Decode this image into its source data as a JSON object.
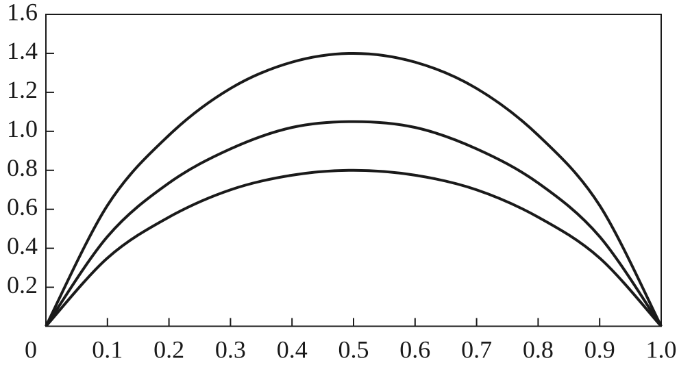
{
  "chart_data": {
    "type": "line",
    "x": [
      0,
      0.1,
      0.2,
      0.3,
      0.4,
      0.5,
      0.6,
      0.7,
      0.8,
      0.9,
      1
    ],
    "series": [
      {
        "color": "#1a1a1a",
        "values": [
          0,
          0.62,
          0.98,
          1.22,
          1.355,
          1.4,
          1.355,
          1.22,
          0.98,
          0.62,
          0
        ]
      },
      {
        "color": "#1a1a1a",
        "values": [
          0,
          0.46,
          0.735,
          0.91,
          1.02,
          1.05,
          1.02,
          0.91,
          0.735,
          0.46,
          0
        ]
      },
      {
        "color": "#1a1a1a",
        "values": [
          0,
          0.35,
          0.56,
          0.7,
          0.775,
          0.8,
          0.775,
          0.7,
          0.56,
          0.35,
          0
        ]
      }
    ],
    "xlim": [
      0,
      1
    ],
    "xticks": [
      0,
      0.1,
      0.2,
      0.3,
      0.4,
      0.5,
      0.6,
      0.7,
      0.8,
      0.9,
      {
        "value": 1,
        "label": "1.0"
      }
    ],
    "ylim": [
      0,
      1.6
    ],
    "yticks": [
      0.2,
      0.4,
      0.6,
      0.8,
      {
        "value": 1,
        "label": "1.0"
      },
      1.2,
      1.4,
      1.6
    ]
  }
}
